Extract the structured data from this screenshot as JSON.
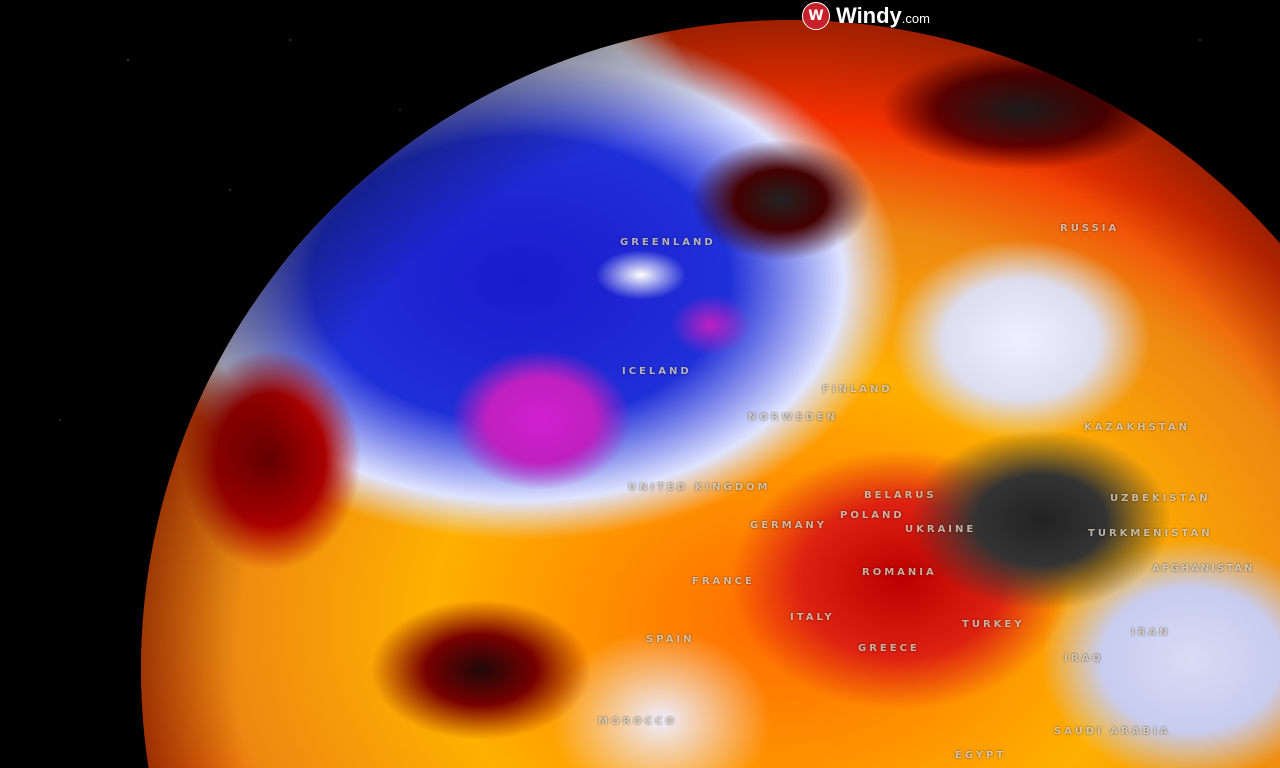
{
  "brand": {
    "name": "Windy",
    "suffix": ".com"
  },
  "labels": [
    {
      "id": "greenland",
      "text": "GREENLAND"
    },
    {
      "id": "iceland",
      "text": "ICELAND"
    },
    {
      "id": "russia",
      "text": "RUSSIA"
    },
    {
      "id": "finland",
      "text": "FINLAND"
    },
    {
      "id": "norweden",
      "text": "NORWEDEN"
    },
    {
      "id": "kazakhstan",
      "text": "KAZAKHSTAN"
    },
    {
      "id": "uk",
      "text": "UNITED KINGDOM"
    },
    {
      "id": "belarus",
      "text": "BELARUS"
    },
    {
      "id": "uzbekistan",
      "text": "UZBEKISTAN"
    },
    {
      "id": "poland",
      "text": "POLAND"
    },
    {
      "id": "germany",
      "text": "GERMANY"
    },
    {
      "id": "ukraine",
      "text": "UKRAINE"
    },
    {
      "id": "turkmenistan",
      "text": "TURKMENISTAN"
    },
    {
      "id": "afghanistan",
      "text": "AFGHANISTAN"
    },
    {
      "id": "romania",
      "text": "ROMANIA"
    },
    {
      "id": "france",
      "text": "FRANCE"
    },
    {
      "id": "italy",
      "text": "ITALY"
    },
    {
      "id": "spain",
      "text": "SPAIN"
    },
    {
      "id": "turkey",
      "text": "TURKEY"
    },
    {
      "id": "iran",
      "text": "IRAN"
    },
    {
      "id": "greece",
      "text": "GREECE"
    },
    {
      "id": "iraq",
      "text": "IRAQ"
    },
    {
      "id": "morocco",
      "text": "MOROCCO"
    },
    {
      "id": "saudi",
      "text": "SAUDI ARABIA"
    },
    {
      "id": "egypt",
      "text": "EGYPT"
    }
  ]
}
